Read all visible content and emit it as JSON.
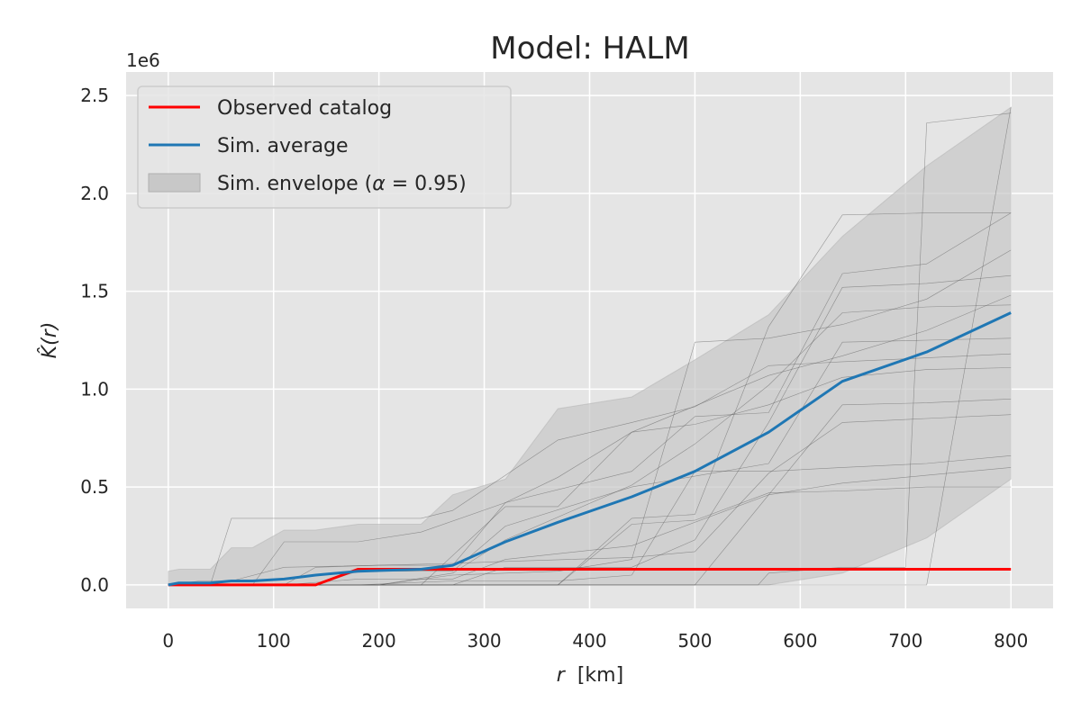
{
  "chart_data": {
    "type": "line",
    "title": "Model: HALM",
    "xlabel_var": "r",
    "xlabel_unit": "[km]",
    "ylabel": "K̂(r)",
    "offset_label": "1e6",
    "xlim": [
      -40,
      840
    ],
    "ylim": [
      -0.12,
      2.62
    ],
    "xticks": [
      0,
      100,
      200,
      300,
      400,
      500,
      600,
      700,
      800
    ],
    "xtick_labels": [
      "0",
      "100",
      "200",
      "300",
      "400",
      "500",
      "600",
      "700",
      "800"
    ],
    "yticks": [
      0.0,
      0.5,
      1.0,
      1.5,
      2.0,
      2.5
    ],
    "ytick_labels": [
      "0.0",
      "0.5",
      "1.0",
      "1.5",
      "2.0",
      "2.5"
    ],
    "grid": true,
    "legend_position": "top-left",
    "legend": {
      "observed": "Observed catalog",
      "average": "Sim. average",
      "envelope_prefix": "Sim. envelope (",
      "envelope_alpha": "α",
      "envelope_suffix": " = 0.95)"
    },
    "colors": {
      "observed": "#ff0000",
      "average": "#1f77b4",
      "envelope": "#c8c8c8",
      "simulations": "#555555",
      "background": "#e5e5e5",
      "grid": "#ffffff"
    },
    "x": [
      0,
      10,
      20,
      30,
      40,
      60,
      80,
      110,
      140,
      180,
      240,
      270,
      320,
      370,
      440,
      500,
      570,
      640,
      720,
      800
    ],
    "series": [
      {
        "key": "observed",
        "name": "Observed catalog",
        "values": [
          0.0,
          0.0,
          0.0,
          0.0,
          0.0,
          0.0,
          0.0,
          0.0,
          0.0,
          0.08,
          0.08,
          0.08,
          0.08,
          0.08,
          0.08,
          0.08,
          0.08,
          0.08,
          0.08,
          0.08
        ]
      },
      {
        "key": "average",
        "name": "Sim. average",
        "values": [
          0.0,
          0.01,
          0.01,
          0.01,
          0.01,
          0.02,
          0.02,
          0.03,
          0.05,
          0.07,
          0.08,
          0.1,
          0.22,
          0.32,
          0.45,
          0.58,
          0.78,
          1.04,
          1.19,
          1.39
        ]
      }
    ],
    "envelope": {
      "upper": [
        0.07,
        0.08,
        0.08,
        0.08,
        0.08,
        0.19,
        0.19,
        0.28,
        0.28,
        0.31,
        0.31,
        0.46,
        0.54,
        0.9,
        0.96,
        1.15,
        1.38,
        1.78,
        2.14,
        2.44
      ],
      "lower": [
        0.0,
        0.0,
        0.0,
        0.0,
        0.0,
        0.0,
        0.0,
        0.0,
        0.0,
        0.0,
        0.0,
        0.0,
        0.0,
        0.0,
        0.0,
        0.0,
        0.0,
        0.06,
        0.24,
        0.54
      ]
    },
    "simulations": [
      [
        [
          0,
          0.0
        ],
        [
          140,
          0.0
        ],
        [
          180,
          0.07
        ],
        [
          270,
          0.07
        ],
        [
          320,
          0.3
        ],
        [
          440,
          0.5
        ],
        [
          570,
          0.62
        ],
        [
          640,
          1.24
        ],
        [
          720,
          1.25
        ],
        [
          800,
          1.26
        ]
      ],
      [
        [
          0,
          0.0
        ],
        [
          30,
          0.02
        ],
        [
          60,
          0.02
        ],
        [
          110,
          0.09
        ],
        [
          200,
          0.1
        ],
        [
          270,
          0.1
        ],
        [
          320,
          0.42
        ],
        [
          440,
          0.58
        ],
        [
          500,
          0.86
        ],
        [
          570,
          0.88
        ],
        [
          640,
          1.59
        ],
        [
          720,
          1.64
        ],
        [
          800,
          1.9
        ]
      ],
      [
        [
          0,
          0.0
        ],
        [
          60,
          0.0
        ],
        [
          110,
          0.0
        ],
        [
          180,
          0.03
        ],
        [
          270,
          0.03
        ],
        [
          320,
          0.13
        ],
        [
          440,
          0.2
        ],
        [
          570,
          0.46
        ],
        [
          640,
          0.92
        ],
        [
          720,
          0.93
        ],
        [
          800,
          0.95
        ]
      ],
      [
        [
          0,
          0.0
        ],
        [
          200,
          0.0
        ],
        [
          270,
          0.05
        ],
        [
          370,
          0.07
        ],
        [
          440,
          0.13
        ],
        [
          500,
          1.24
        ],
        [
          570,
          1.26
        ],
        [
          640,
          1.33
        ],
        [
          720,
          1.46
        ],
        [
          800,
          1.71
        ]
      ],
      [
        [
          0,
          0.0
        ],
        [
          270,
          0.0
        ],
        [
          320,
          0.09
        ],
        [
          440,
          0.09
        ],
        [
          500,
          0.23
        ],
        [
          570,
          0.83
        ],
        [
          640,
          1.52
        ],
        [
          720,
          1.54
        ],
        [
          800,
          1.58
        ]
      ],
      [
        [
          0,
          0.0
        ],
        [
          180,
          0.0
        ],
        [
          270,
          0.02
        ],
        [
          370,
          0.02
        ],
        [
          440,
          0.05
        ],
        [
          500,
          0.58
        ],
        [
          570,
          0.58
        ],
        [
          640,
          0.6
        ],
        [
          720,
          0.62
        ],
        [
          800,
          0.66
        ]
      ],
      [
        [
          0,
          0.0
        ],
        [
          370,
          0.0
        ],
        [
          440,
          0.31
        ],
        [
          500,
          0.33
        ],
        [
          570,
          0.47
        ],
        [
          640,
          0.48
        ],
        [
          720,
          0.5
        ],
        [
          800,
          0.5
        ]
      ],
      [
        [
          0,
          0.0
        ],
        [
          80,
          0.0
        ],
        [
          110,
          0.22
        ],
        [
          180,
          0.22
        ],
        [
          240,
          0.27
        ],
        [
          320,
          0.42
        ],
        [
          370,
          0.55
        ],
        [
          440,
          0.78
        ],
        [
          570,
          1.07
        ],
        [
          640,
          1.17
        ],
        [
          720,
          1.3
        ],
        [
          800,
          1.48
        ]
      ],
      [
        [
          0,
          0.0
        ],
        [
          240,
          0.0
        ],
        [
          320,
          0.4
        ],
        [
          370,
          0.4
        ],
        [
          440,
          0.78
        ],
        [
          500,
          0.82
        ],
        [
          570,
          0.92
        ],
        [
          640,
          1.06
        ],
        [
          720,
          1.1
        ],
        [
          800,
          1.11
        ]
      ],
      [
        [
          0,
          0.0
        ],
        [
          370,
          0.0
        ],
        [
          440,
          0.34
        ],
        [
          500,
          0.36
        ],
        [
          570,
          1.32
        ],
        [
          640,
          1.89
        ],
        [
          720,
          1.9
        ],
        [
          800,
          1.9
        ]
      ],
      [
        [
          0,
          0.0
        ],
        [
          560,
          0.0
        ],
        [
          570,
          0.06
        ],
        [
          640,
          0.09
        ],
        [
          700,
          0.09
        ],
        [
          720,
          2.36
        ],
        [
          800,
          2.41
        ]
      ],
      [
        [
          0,
          0.0
        ],
        [
          640,
          0.0
        ],
        [
          700,
          0.0
        ],
        [
          720,
          0.0
        ],
        [
          800,
          2.44
        ]
      ],
      [
        [
          0,
          0.0
        ],
        [
          500,
          0.0
        ],
        [
          570,
          0.46
        ],
        [
          640,
          0.52
        ],
        [
          720,
          0.56
        ],
        [
          800,
          0.6
        ]
      ],
      [
        [
          0,
          0.0
        ],
        [
          40,
          0.0
        ],
        [
          60,
          0.34
        ],
        [
          180,
          0.34
        ],
        [
          240,
          0.34
        ],
        [
          270,
          0.38
        ],
        [
          320,
          0.56
        ],
        [
          370,
          0.74
        ],
        [
          440,
          0.83
        ],
        [
          500,
          0.91
        ],
        [
          570,
          1.12
        ],
        [
          640,
          1.14
        ],
        [
          720,
          1.16
        ],
        [
          800,
          1.18
        ]
      ],
      [
        [
          0,
          0.0
        ],
        [
          110,
          0.0
        ],
        [
          140,
          0.09
        ],
        [
          200,
          0.1
        ],
        [
          270,
          0.11
        ],
        [
          320,
          0.12
        ],
        [
          440,
          0.14
        ],
        [
          500,
          0.17
        ],
        [
          570,
          0.57
        ],
        [
          640,
          0.83
        ],
        [
          720,
          0.85
        ],
        [
          800,
          0.87
        ]
      ],
      [
        [
          0,
          0.0
        ],
        [
          200,
          0.0
        ],
        [
          270,
          0.06
        ],
        [
          320,
          0.23
        ],
        [
          440,
          0.51
        ],
        [
          500,
          0.72
        ],
        [
          570,
          1.02
        ],
        [
          640,
          1.39
        ],
        [
          720,
          1.42
        ],
        [
          800,
          1.43
        ]
      ]
    ]
  }
}
